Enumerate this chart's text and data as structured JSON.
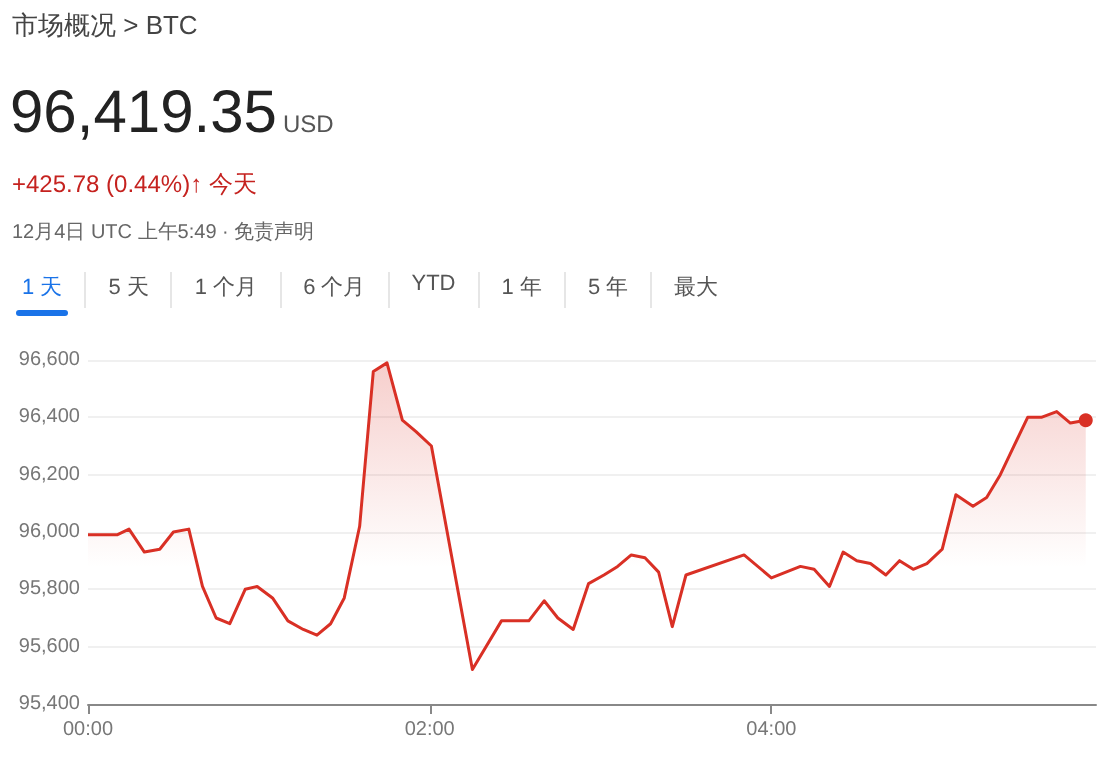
{
  "chart_data": {
    "type": "area",
    "title": "市场概况 > BTC",
    "annotations": [
      "96,419.35",
      "USD",
      "+425.78 (0.44%)↑ 今天",
      "12月4日 UTC 上午5:49 · 免责声明",
      "1 天",
      "5 天",
      "1 个月",
      "6 个月",
      "YTD",
      "1 年",
      "5 年",
      "最大"
    ],
    "x": [
      0,
      0.17,
      0.24,
      0.33,
      0.42,
      0.5,
      0.59,
      0.67,
      0.75,
      0.83,
      0.92,
      0.99,
      1.08,
      1.17,
      1.26,
      1.34,
      1.42,
      1.5,
      1.59,
      1.67,
      1.75,
      1.84,
      1.92,
      2.01,
      2.25,
      2.42,
      2.58,
      2.67,
      2.75,
      2.84,
      2.93,
      3.02,
      3.1,
      3.18,
      3.26,
      3.34,
      3.42,
      3.5,
      3.84,
      4.0,
      4.17,
      4.25,
      4.34,
      4.42,
      4.5,
      4.58,
      4.67,
      4.75,
      4.83,
      4.91,
      5.0,
      5.08,
      5.18,
      5.26,
      5.34,
      5.5,
      5.58,
      5.67,
      5.75,
      5.84
    ],
    "series": [
      {
        "color": "#d93025",
        "values": [
          95990,
          95990,
          96010,
          95930,
          95940,
          96000,
          96010,
          95810,
          95700,
          95680,
          95800,
          95810,
          95770,
          95690,
          95660,
          95640,
          95680,
          95770,
          96020,
          96560,
          96590,
          96390,
          96350,
          96300,
          95520,
          95690,
          95690,
          95760,
          95700,
          95660,
          95820,
          95850,
          95880,
          95920,
          95910,
          95860,
          95670,
          95850,
          95920,
          95840,
          95880,
          95870,
          95810,
          95930,
          95900,
          95890,
          95850,
          95900,
          95870,
          95890,
          95940,
          96130,
          96090,
          96120,
          96200,
          96400,
          96400,
          96420,
          96380,
          96390
        ]
      }
    ],
    "xlim": [
      0,
      5.9
    ],
    "xticks": [
      {
        "value": 0,
        "label": "00:00"
      },
      {
        "value": 2,
        "label": "02:00"
      },
      {
        "value": 4,
        "label": "04:00"
      }
    ],
    "ylim": [
      95400,
      96600
    ],
    "yticks": [
      {
        "value": 95400,
        "label": "95,400"
      },
      {
        "value": 95600,
        "label": "95,600"
      },
      {
        "value": 95800,
        "label": "95,800"
      },
      {
        "value": 96000,
        "label": "96,000"
      },
      {
        "value": 96200,
        "label": "96,200"
      },
      {
        "value": 96400,
        "label": "96,400"
      },
      {
        "value": 96600,
        "label": "96,600"
      }
    ],
    "grid": "y"
  }
}
